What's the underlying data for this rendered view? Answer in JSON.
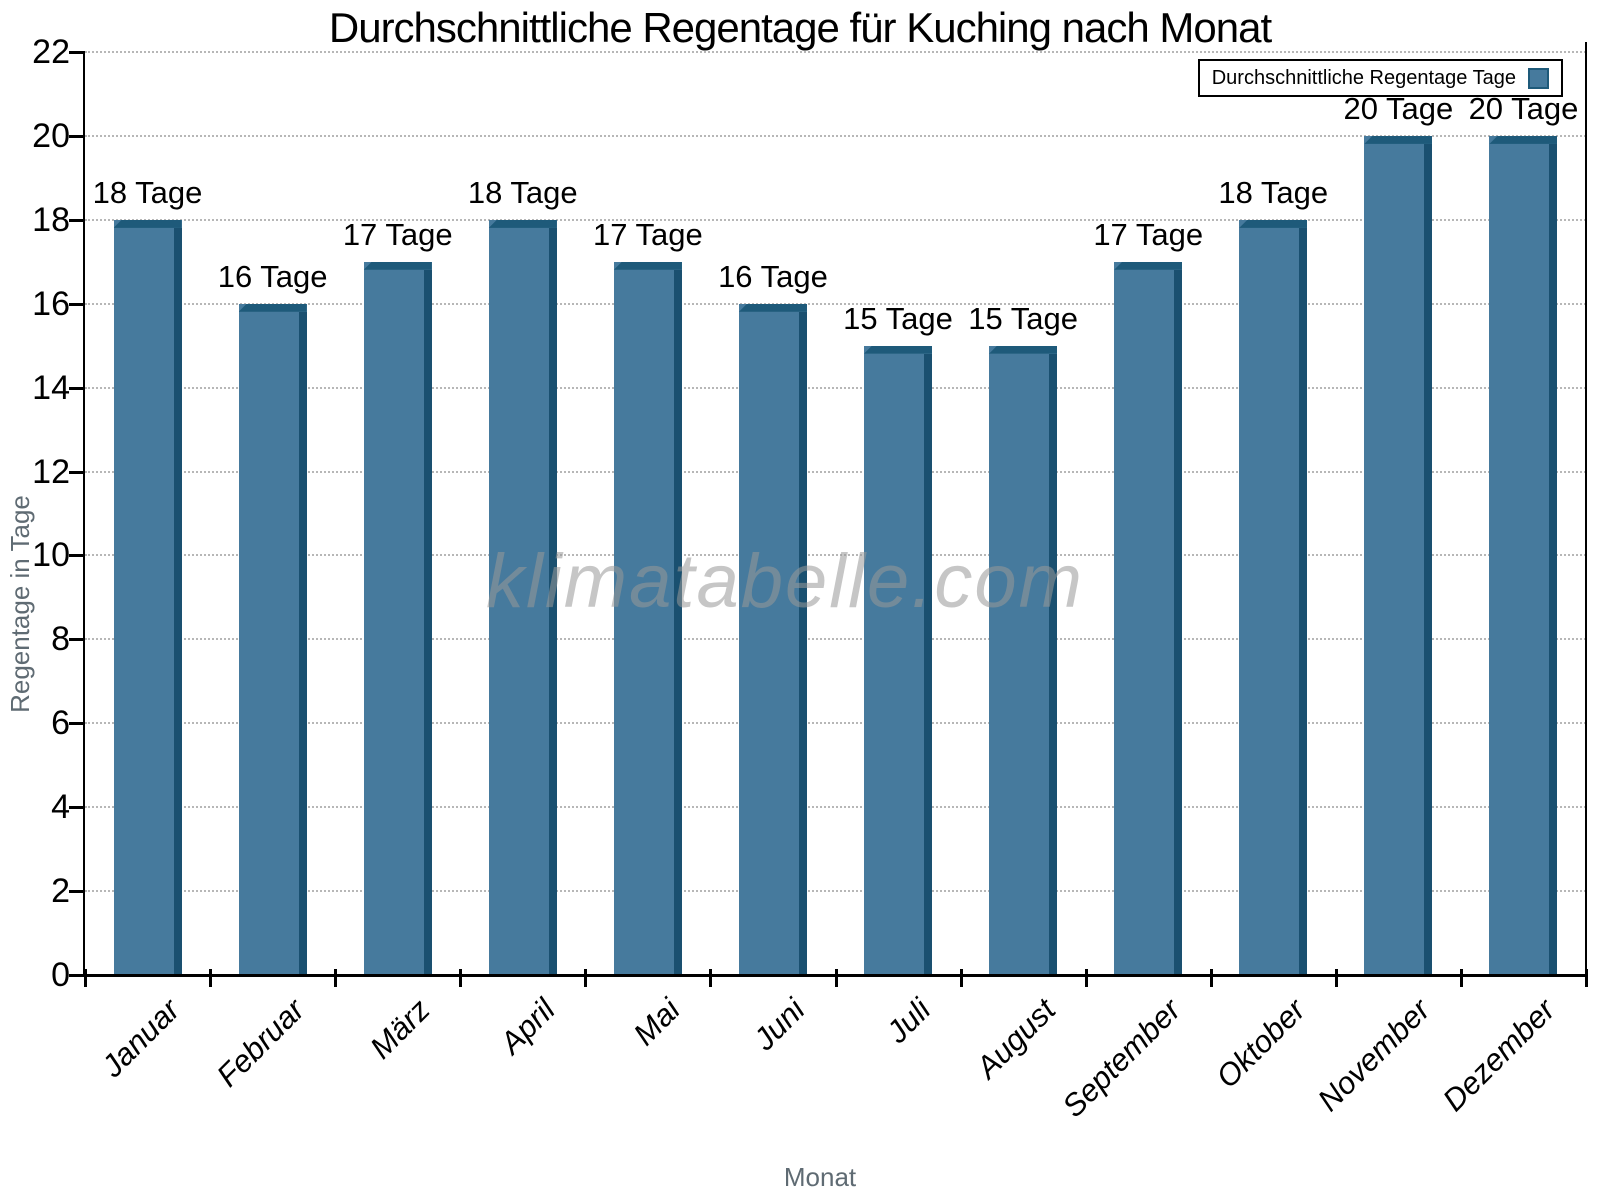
{
  "watermark": "klimatabelle.com",
  "chart_data": {
    "type": "bar",
    "title": "Durchschnittliche Regentage für Kuching nach Monat",
    "categories": [
      "Januar",
      "Februar",
      "März",
      "April",
      "Mai",
      "Juni",
      "Juli",
      "August",
      "September",
      "Oktober",
      "November",
      "Dezember"
    ],
    "values": [
      18,
      16,
      17,
      18,
      17,
      16,
      15,
      15,
      17,
      18,
      20,
      20
    ],
    "bar_labels": [
      "18 Tage",
      "16 Tage",
      "17 Tage",
      "18 Tage",
      "17 Tage",
      "16 Tage",
      "15 Tage",
      "15 Tage",
      "17 Tage",
      "18 Tage",
      "20 Tage",
      "20 Tage"
    ],
    "xlabel": "Monat",
    "ylabel": "Regentage in Tage",
    "ylim": [
      0,
      22
    ],
    "ytick_step": 2,
    "legend": "Durchschnittliche Regentage Tage",
    "legend_position": "top-right",
    "grid": "horizontal-dotted",
    "colors": {
      "bar_face": "#467a9d",
      "bar_side": "#1a5070",
      "bar_top": "#1e5a7a",
      "grid_line": "#b7b7b7",
      "axis": "#000000",
      "axis_title": "#5f6b73",
      "watermark": "#999999"
    }
  }
}
